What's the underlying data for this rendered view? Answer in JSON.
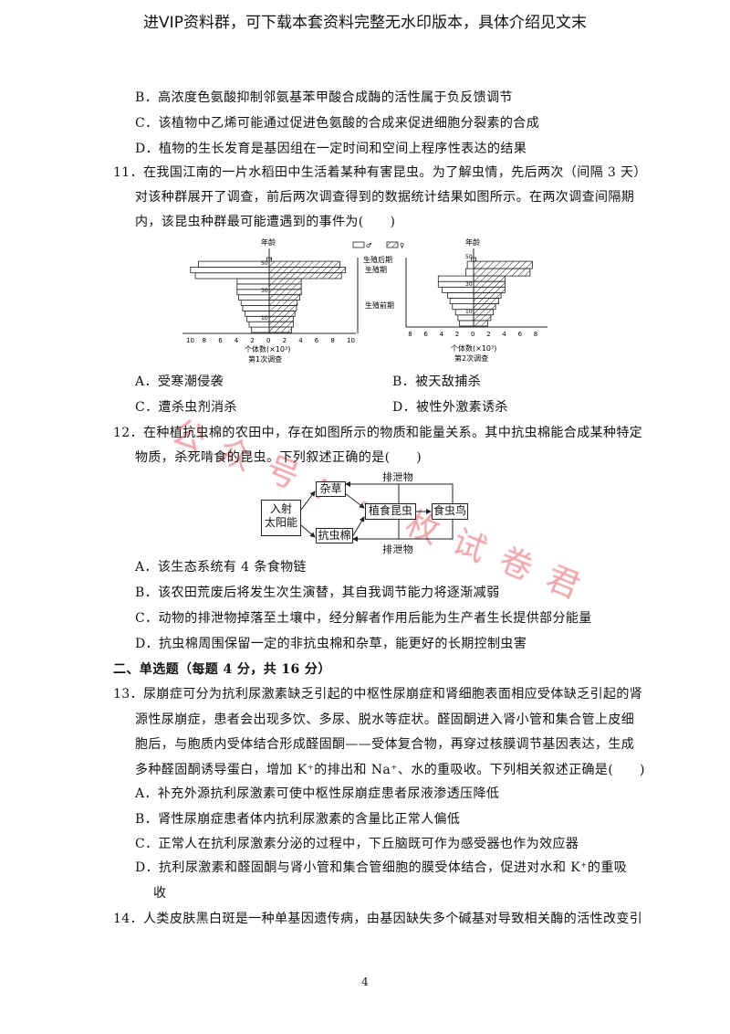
{
  "header": "进VIP资料群，可下载本套资料完整无水印版本，具体介绍见文末",
  "q10_options": [
    "B．高浓度色氨酸抑制邻氨基苯甲酸合成酶的活性属于负反馈调节",
    "C．该植物中乙烯可能通过促进色氨酸的合成来促进细胞分裂素的合成",
    "D．植物的生长发育是基因组在一定时间和空间上程序性表达的结果"
  ],
  "q11": {
    "lines": [
      "11．在我国江南的一片水稻田中生活着某种有害昆虫。为了解虫情，先后两次（间隔 3 天）",
      "对该种群展开了调查，前后两次调查得到的数据统计结果如图所示。在两次调查间隔期",
      "内，该昆虫种群最可能遭遇到的事件为(　　)"
    ],
    "figure": {
      "legend": [
        "♂",
        "♀"
      ],
      "y_label": "年龄",
      "stage_labels": [
        "生殖后期",
        "生殖期",
        "生殖前期"
      ],
      "x_label": "个体数(×10³)",
      "surveys": [
        {
          "title": "第1次调查",
          "ticks": [
            "10",
            "8",
            "6",
            "4",
            "2",
            "0",
            "2",
            "4",
            "6",
            "8",
            "10"
          ],
          "age_ticks": [
            "10",
            "30",
            "50"
          ],
          "male": {
            "pre": [
              2.2,
              2.5,
              2.8,
              3,
              3.3,
              3.5,
              3.8,
              4,
              4,
              4
            ],
            "repro": [
              9.2,
              9.8,
              8.8
            ],
            "post": [
              0.3
            ]
          },
          "female": {
            "pre": [
              2.8,
              3,
              3,
              3.2,
              3.4,
              3.5,
              3.8,
              4,
              4,
              4
            ],
            "repro": [
              9,
              9.5,
              8.8
            ],
            "post": [
              0.3
            ]
          }
        },
        {
          "title": "第2次调查",
          "ticks": [
            "8",
            "6",
            "4",
            "2",
            "0",
            "2",
            "4",
            "6",
            "8"
          ],
          "age_ticks": [
            "10",
            "30",
            "50"
          ],
          "male": {
            "pre": [
              1.8,
              2,
              2.3,
              2.7,
              3,
              3.3,
              4,
              4.5,
              4.5
            ],
            "repro": [
              1,
              0.8
            ],
            "post": [
              0.3
            ]
          },
          "female": {
            "pre": [
              1.8,
              2.2,
              2.5,
              2.8,
              3.2,
              3.5,
              4,
              4,
              4
            ],
            "repro": [
              7.2,
              7.5
            ],
            "post": [
              0.3
            ]
          }
        }
      ]
    },
    "options": [
      "A．受寒潮侵袭",
      "B．被天敌捕杀",
      "C．遭杀虫剂消杀",
      "D．被性外激素诱杀"
    ]
  },
  "q12": {
    "lines": [
      "12．在种植抗虫棉的农田中，存在如图所示的物质和能量关系。其中抗虫棉能合成某种特定",
      "物质，杀死啃食的昆虫。下列叙述正确的是(　　)"
    ],
    "diagram": {
      "sun": [
        "入射",
        "太阳能"
      ],
      "weed": "杂草",
      "cotton": "抗虫棉",
      "insect": "植食昆虫",
      "bird": "食虫鸟",
      "waste_top": "排泄物",
      "waste_bottom": "排泄物"
    },
    "options": [
      "A．该生态系统有 4 条食物链",
      "B．该农田荒废后将发生次生演替，其自我调节能力将逐渐减弱",
      "C．动物的排泄物掉落至土壤中，经分解者作用后能为生产者生长提供部分能量",
      "D．抗虫棉周围保留一定的非抗虫棉和杂草，能更好的长期控制虫害"
    ]
  },
  "section2": "二、单选题（每题 4 分，共 16 分）",
  "q13": {
    "lines": [
      "13．尿崩症可分为抗利尿激素缺乏引起的中枢性尿崩症和肾细胞表面相应受体缺乏引起的肾",
      "源性尿崩症，患者会出现多饮、多尿、脱水等症状。醛固酮进入肾小管和集合管上皮细",
      "胞后，与胞质内受体结合形成醛固酮——受体复合物，再穿过核膜调节基因表达，生成",
      "多种醛固酮诱导蛋白，增加 K⁺的排出和 Na⁺、水的重吸收。下列相关叙述正确是(　　)"
    ],
    "options": [
      "A．补充外源抗利尿激素可使中枢性尿崩症患者尿液渗透压降低",
      "B．肾性尿崩症患者体内抗利尿激素的含量比正常人偏低",
      "C．正常人在抗利尿激素分泌的过程中，下丘脑既可作为感受器也作为效应器",
      "D．抗利尿激素和醛固酮与肾小管和集合管细胞的膜受体结合，促进对水和 K⁺的重吸",
      "收"
    ]
  },
  "q14": "14．人类皮肤黑白斑是一种单基因遗传病，由基因缺失多个碱基对导致相关酶的活性改变引",
  "watermark": "公众号：一枚试卷君",
  "page_number": "4"
}
